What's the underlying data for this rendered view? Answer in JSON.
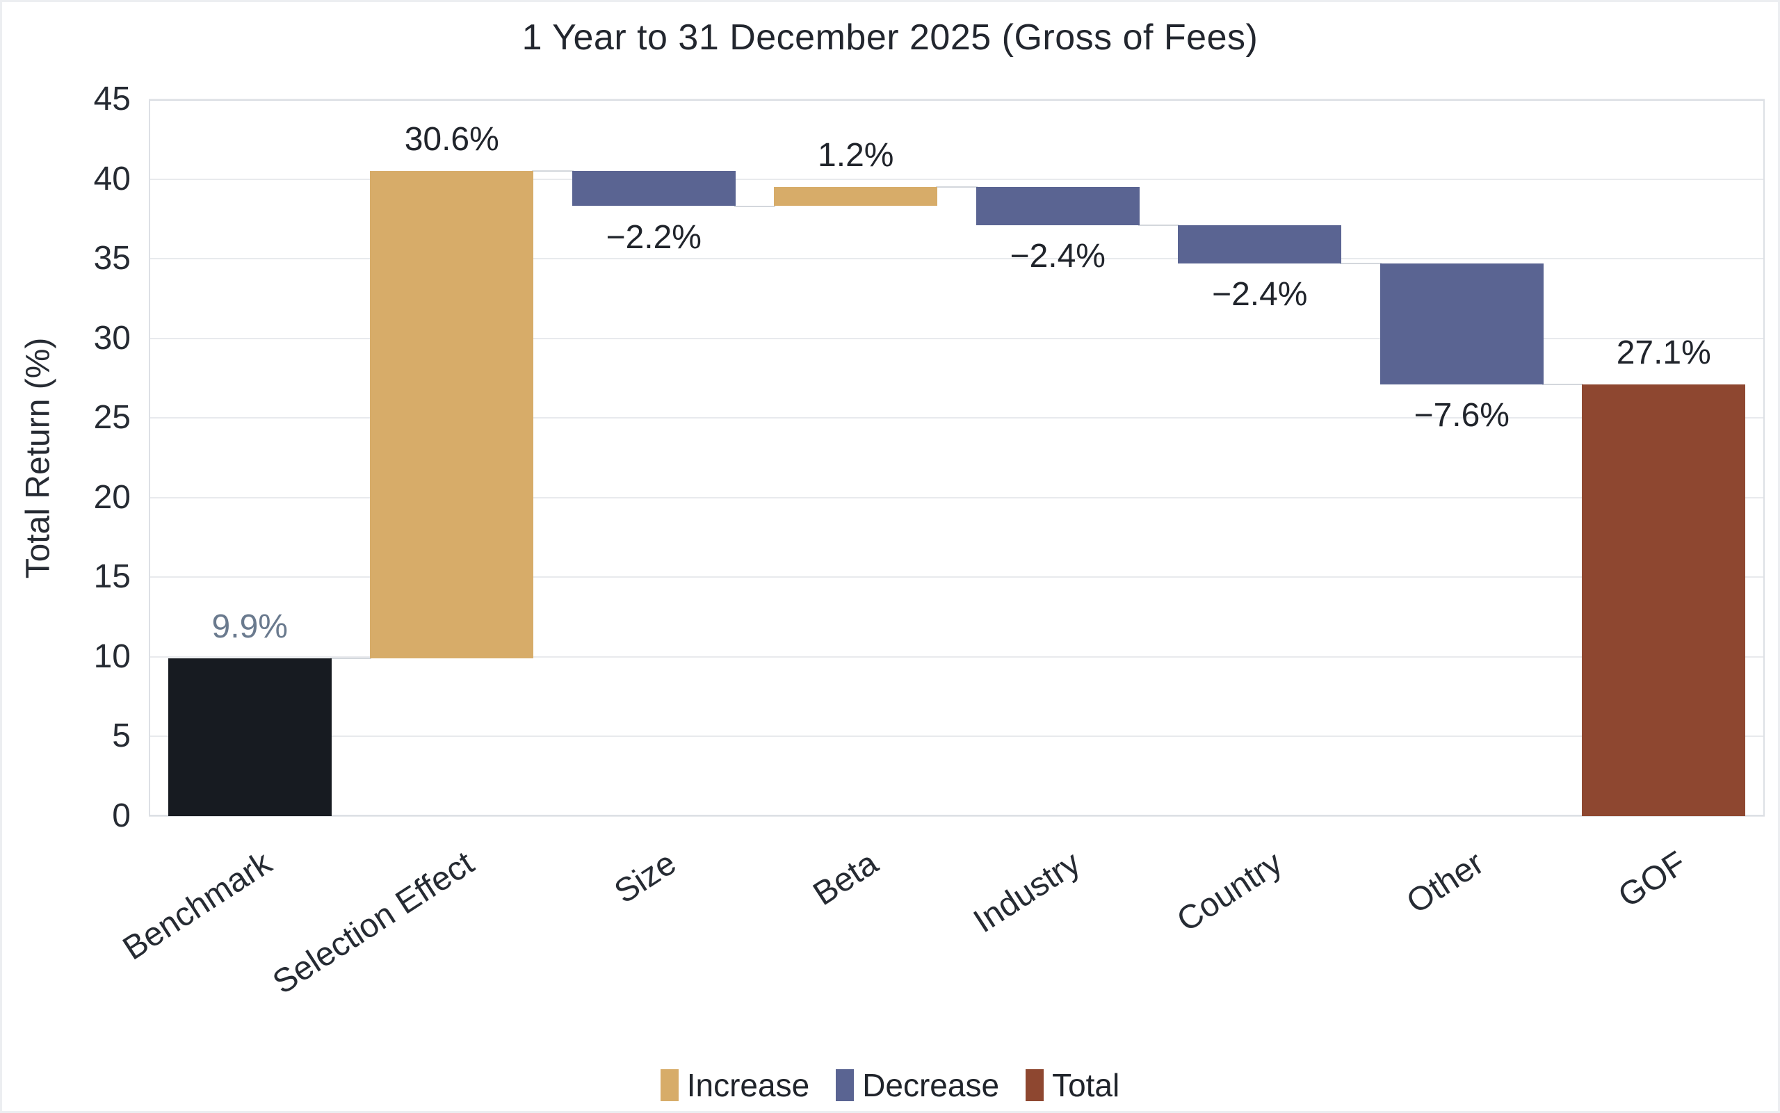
{
  "chart_data": {
    "type": "waterfall",
    "title": "1 Year to 31 December 2025 (Gross of Fees)",
    "xlabel": "",
    "ylabel": "Total Return (%)",
    "ylim": [
      0,
      45
    ],
    "ytick_step": 5,
    "yticks": [
      "0",
      "5",
      "10",
      "15",
      "20",
      "25",
      "30",
      "35",
      "40",
      "45"
    ],
    "grid": true,
    "legend_position": "bottom-center",
    "categories": [
      "Benchmark",
      "Selection Effect",
      "Size",
      "Beta",
      "Industry",
      "Country",
      "Other",
      "GOF"
    ],
    "bars": [
      {
        "category": "Benchmark",
        "value": 9.9,
        "kind": "absolute",
        "label": "9.9%",
        "label_side": "above",
        "label_color": "#6a7a8e"
      },
      {
        "category": "Selection Effect",
        "value": 30.6,
        "kind": "increase",
        "label": "30.6%",
        "label_side": "above"
      },
      {
        "category": "Size",
        "value": -2.2,
        "kind": "decrease",
        "label": "−2.2%",
        "label_side": "below"
      },
      {
        "category": "Beta",
        "value": 1.2,
        "kind": "increase",
        "label": "1.2%",
        "label_side": "above"
      },
      {
        "category": "Industry",
        "value": -2.4,
        "kind": "decrease",
        "label": "−2.4%",
        "label_side": "below"
      },
      {
        "category": "Country",
        "value": -2.4,
        "kind": "decrease",
        "label": "−2.4%",
        "label_side": "below"
      },
      {
        "category": "Other",
        "value": -7.6,
        "kind": "decrease",
        "label": "−7.6%",
        "label_side": "below"
      },
      {
        "category": "GOF",
        "value": 27.1,
        "kind": "total",
        "label": "27.1%",
        "label_side": "above"
      }
    ],
    "legend": [
      {
        "label": "Increase",
        "kind": "increase",
        "color": "#d7ac69"
      },
      {
        "label": "Decrease",
        "kind": "decrease",
        "color": "#5a6492"
      },
      {
        "label": "Total",
        "kind": "total",
        "color": "#8e4730"
      }
    ],
    "colors": {
      "absolute": "#171b21",
      "increase": "#d7ac69",
      "decrease": "#5a6492",
      "total": "#8e4730",
      "connector": "#d3d7dc",
      "gridline": "#e8eaed",
      "plot_border": "#dde0e5",
      "label": "#20242b",
      "axis_text": "#262b33",
      "title_text": "#22262e",
      "background": "#ffffff"
    }
  }
}
